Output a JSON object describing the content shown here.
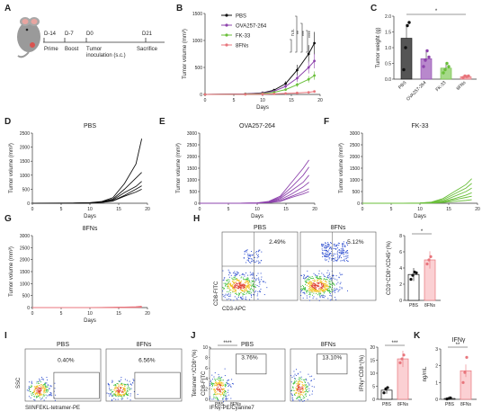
{
  "colors": {
    "pbs": "#111111",
    "ova": "#8e44ad",
    "fk": "#6abf3a",
    "fns": "#e8757c",
    "bar_pbs": "#555555",
    "bar_ova": "#b888cc",
    "bar_fk": "#a6d98a",
    "bar_fns": "#f3b3b8"
  },
  "panels": {
    "A": "A",
    "B": "B",
    "C": "C",
    "D": "D",
    "E": "E",
    "F": "F",
    "G": "G",
    "H": "H",
    "I": "I",
    "J": "J",
    "K": "K"
  },
  "schedule": {
    "days": [
      "D-14",
      "D-7",
      "D0",
      "D21"
    ],
    "events": [
      "Prime",
      "Boost",
      "Tumor\ninoculation (s.c.)",
      "Sacrifice"
    ]
  },
  "tumor_growth": {
    "ylabel": "Tumor volume (mm³)",
    "xlabel": "Days",
    "yticks_main": [
      "0",
      "500",
      "1000",
      "1500"
    ],
    "xticks": [
      "0",
      "5",
      "10",
      "15",
      "20"
    ],
    "legend": [
      "PBS",
      "OVA257-264",
      "FK-33",
      "8FNs"
    ],
    "sig": [
      "**",
      "***",
      "****",
      "n.s."
    ]
  },
  "weight": {
    "ylabel": "Tumor weight (g)",
    "yticks": [
      "0.0",
      "0.5",
      "1.0",
      "1.5",
      "2.0"
    ],
    "groups": [
      "PBS",
      "OVA257-264",
      "FK-33",
      "8FNs"
    ],
    "sig": "*"
  },
  "individual": {
    "titles": [
      "PBS",
      "OVA257-264",
      "FK-33",
      "8FNs"
    ],
    "yticks_d": [
      "0",
      "500",
      "1000",
      "1500",
      "2000",
      "2500"
    ],
    "yticks_efg": [
      "0",
      "500",
      "1000",
      "1500",
      "2000",
      "2500",
      "3000"
    ]
  },
  "flow": {
    "H": {
      "ylabel": "CD8-FITC",
      "xlabel": "CD3-APC",
      "pbs": "PBS",
      "fns": "8FNs",
      "pbs_pct": "2.49%",
      "fns_pct": "5.12%",
      "bar_ylabel": "CD3⁺CD8⁺/CD45⁺(%)",
      "yticks": [
        "0",
        "2",
        "4",
        "6",
        "8"
      ],
      "sig": "*"
    },
    "I": {
      "ylabel": "SSC",
      "xlabel": "SIINFEKL-tetramer-PE",
      "pbs": "PBS",
      "fns": "8FNs",
      "pbs_pct": "0.40%",
      "fns_pct": "6.56%",
      "bar_ylabel": "Tetramer⁺/CD8⁺(%)",
      "yticks": [
        "0",
        "2",
        "4",
        "6",
        "8",
        "10"
      ],
      "sig": "****"
    },
    "J": {
      "ylabel": "CD8-FITC",
      "xlabel": "IFNγ-PE/Cyanine7",
      "pbs": "PBS",
      "fns": "8FNs",
      "pbs_pct": "3.76%",
      "fns_pct": "13.10%",
      "bar_ylabel": "IFNγ⁺CD8⁺(%)",
      "yticks": [
        "0",
        "5",
        "10",
        "15",
        "20"
      ],
      "sig": "***"
    },
    "K": {
      "title": "IFNγ",
      "ylabel": "ng/mL",
      "yticks": [
        "0",
        "1",
        "2",
        "3"
      ],
      "sig": "**"
    }
  },
  "chart_data": [
    {
      "type": "line",
      "title": "",
      "xlabel": "Days",
      "ylabel": "Tumor volume (mm³)",
      "x": [
        0,
        7,
        10,
        12,
        14,
        16,
        18,
        19
      ],
      "ylim": [
        0,
        1500
      ],
      "xlim": [
        0,
        20
      ],
      "series": [
        {
          "name": "PBS",
          "values": [
            0,
            10,
            30,
            80,
            200,
            450,
            750,
            950
          ]
        },
        {
          "name": "OVA257-264",
          "values": [
            0,
            8,
            25,
            60,
            150,
            300,
            500,
            620
          ]
        },
        {
          "name": "FK-33",
          "values": [
            0,
            5,
            15,
            40,
            90,
            180,
            280,
            350
          ]
        },
        {
          "name": "8FNs",
          "values": [
            0,
            2,
            5,
            10,
            18,
            28,
            40,
            55
          ]
        }
      ]
    },
    {
      "type": "bar",
      "title": "",
      "ylabel": "Tumor weight (g)",
      "categories": [
        "PBS",
        "OVA257-264",
        "FK-33",
        "8FNs"
      ],
      "values": [
        1.3,
        0.65,
        0.35,
        0.08
      ],
      "ylim": [
        0,
        2.0
      ]
    },
    {
      "type": "bar",
      "ylabel": "CD3⁺CD8⁺/CD45⁺(%)",
      "categories": [
        "PBS",
        "8FNs"
      ],
      "values": [
        3.2,
        5.0
      ],
      "ylim": [
        0,
        8
      ]
    },
    {
      "type": "bar",
      "ylabel": "Tetramer⁺/CD8⁺(%)",
      "categories": [
        "PBS",
        "8FNs"
      ],
      "values": [
        0.9,
        6.7
      ],
      "ylim": [
        0,
        10
      ]
    },
    {
      "type": "bar",
      "ylabel": "IFNγ⁺CD8⁺(%)",
      "categories": [
        "PBS",
        "8FNs"
      ],
      "values": [
        3.5,
        15.5
      ],
      "ylim": [
        0,
        20
      ]
    },
    {
      "type": "bar",
      "title": "IFNγ",
      "ylabel": "ng/mL",
      "categories": [
        "PBS",
        "8FNs"
      ],
      "values": [
        0.05,
        1.7
      ],
      "ylim": [
        0,
        3
      ]
    }
  ]
}
